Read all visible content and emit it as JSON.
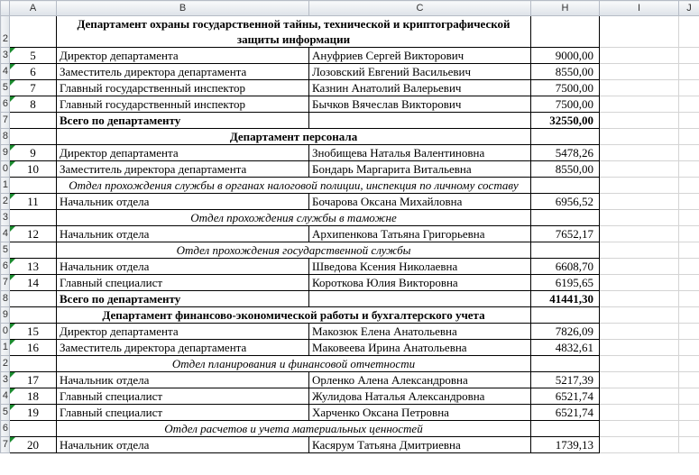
{
  "columns": [
    "",
    "A",
    "B",
    "C",
    "H",
    "I",
    "J"
  ],
  "rows": [
    {
      "n": "2",
      "title": "Департамент охраны государственной тайны, технической и криптографической защиты информации"
    },
    {
      "n": "3",
      "no": "5",
      "position": "Директор департамента",
      "name": "Ануфриев Сергей Викторович",
      "salary": "9000,00"
    },
    {
      "n": "4",
      "no": "6",
      "position": "Заместитель директора департамента",
      "name": "Лозовский Евгений Васильевич",
      "salary": "8550,00"
    },
    {
      "n": "5",
      "no": "7",
      "position": "Главный государственный инспектор",
      "name": "Казнин Анатолий Валерьевич",
      "salary": "7500,00"
    },
    {
      "n": "6",
      "no": "8",
      "position": "Главный государственный инспектор",
      "name": "Бычков Вячеслав Викторович",
      "salary": "7500,00"
    },
    {
      "n": "7",
      "total_label": "Всего по департаменту",
      "total": "32550,00"
    },
    {
      "n": "8",
      "title": "Департамент персонала"
    },
    {
      "n": "9",
      "no": "9",
      "position": "Директор департамента",
      "name": "Знобищева Наталья Валентиновна",
      "salary": "5478,26"
    },
    {
      "n": "0",
      "no": "10",
      "position": "Заместитель директора департамента",
      "name": "Бондарь Маргарита Витальевна",
      "salary": "8550,00"
    },
    {
      "n": "1",
      "section": "Отдел прохождения службы в органах налоговой полиции, инспекция по личному составу"
    },
    {
      "n": "2",
      "no": "11",
      "position": "Начальник отдела",
      "name": "Бочарова Оксана Михайловна",
      "salary": "6956,52"
    },
    {
      "n": "3",
      "section": "Отдел прохождения службы в таможне"
    },
    {
      "n": "4",
      "no": "12",
      "position": "Начальник отдела",
      "name": "Архипенкова Татьяна Григорьевна",
      "salary": "7652,17"
    },
    {
      "n": "5",
      "section": "Отдел прохождения государственной службы"
    },
    {
      "n": "6",
      "no": "13",
      "position": "Начальник отдела",
      "name": "Шведова Ксения Николаевна",
      "salary": "6608,70"
    },
    {
      "n": "7",
      "no": "14",
      "position": "Главный специалист",
      "name": "Короткова Юлия Викторовна",
      "salary": "6195,65"
    },
    {
      "n": "8",
      "total_label": "Всего по департаменту",
      "total": "41441,30"
    },
    {
      "n": "9",
      "title": "Департамент финансово-экономической работы и бухгалтерского учета"
    },
    {
      "n": "0",
      "no": "15",
      "position": "Директор департамента",
      "name": "Макозюк Елена Анатольевна",
      "salary": "7826,09"
    },
    {
      "n": "1",
      "no": "16",
      "position": "Заместитель директора департамента",
      "name": "Маковеева Ирина Анатольевна",
      "salary": "4832,61"
    },
    {
      "n": "2",
      "section": "Отдел планирования и финансовой отчетности"
    },
    {
      "n": "3",
      "no": "17",
      "position": "Начальник отдела",
      "name": "Орленко Алена Александровна",
      "salary": "5217,39"
    },
    {
      "n": "4",
      "no": "18",
      "position": "Главный специалист",
      "name": "Жулидова Наталья Александровна",
      "salary": "6521,74"
    },
    {
      "n": "5",
      "no": "19",
      "position": "Главный специалист",
      "name": "Харченко Оксана Петровна",
      "salary": "6521,74"
    },
    {
      "n": "6",
      "section": "Отдел расчетов и учета материальных ценностей"
    },
    {
      "n": "7",
      "no": "20",
      "position": "Начальник отдела",
      "name": "Касярум Татьяна Дмитриевна",
      "salary": "1739,13"
    }
  ]
}
